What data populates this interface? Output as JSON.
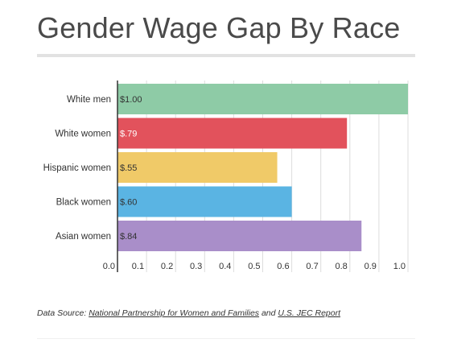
{
  "title": "Gender Wage Gap By Race",
  "chart_data": {
    "type": "bar",
    "orientation": "horizontal",
    "title": "Gender Wage Gap By Race",
    "categories": [
      "White men",
      "White women",
      "Hispanic women",
      "Black women",
      "Asian women"
    ],
    "values": [
      1.0,
      0.79,
      0.55,
      0.6,
      0.84
    ],
    "data_labels": [
      "$1.00",
      "$.79",
      "$.55",
      "$.60",
      "$.84"
    ],
    "colors": [
      "#8ecba6",
      "#e2525c",
      "#f0ca68",
      "#5ab4e3",
      "#a98ec9"
    ],
    "xlim": [
      0,
      1.0
    ],
    "xticks": [
      "0.0",
      "0.1",
      "0.2",
      "0.3",
      "0.4",
      "0.5",
      "0.6",
      "0.7",
      "0.8",
      "0.9",
      "1.0"
    ],
    "grid": true,
    "legend": "none"
  },
  "source": {
    "prefix": "Data Source: ",
    "link1": "National Partnership for Women and Families",
    "middle": " and ",
    "link2": "U.S. JEC Report"
  }
}
